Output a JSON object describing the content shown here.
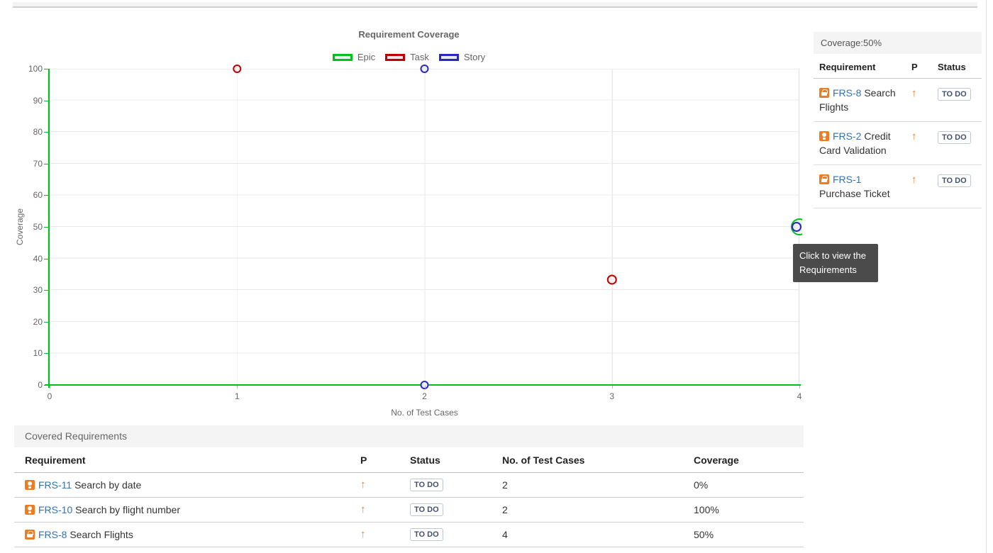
{
  "colors": {
    "epic_green": "#00c01e",
    "task_red": "#c00000",
    "story_blue": "#2929c0",
    "link_blue": "#3572b0",
    "issue_icon_orange": "#ef7b23",
    "priority_arrow_orange": "#ea7d24",
    "tooltip_bg": "#4b4b4b"
  },
  "chart": {
    "title": "Requirement Coverage",
    "legend": [
      {
        "label": "Epic",
        "border": "#00c01e",
        "fill": "#eaf7ea"
      },
      {
        "label": "Task",
        "border": "#c00000",
        "fill": "#f7eaea"
      },
      {
        "label": "Story",
        "border": "#2929c0",
        "fill": "#eaeaf7"
      }
    ],
    "xlabel": "No. of Test Cases",
    "ylabel": "Coverage",
    "x_ticks": [
      "0",
      "1",
      "2",
      "3",
      "4"
    ],
    "y_ticks": [
      "0",
      "10",
      "20",
      "30",
      "40",
      "50",
      "60",
      "70",
      "80",
      "90",
      "100"
    ],
    "chart_data": {
      "type": "scatter",
      "title": "Requirement Coverage",
      "xlabel": "No. of Test Cases",
      "ylabel": "Coverage",
      "xlim": [
        0,
        4
      ],
      "ylim": [
        0,
        100
      ],
      "grid": true,
      "legend_position": "top-center",
      "series": [
        {
          "name": "Epic",
          "color": "#00c01e",
          "fill": "#eaf7ea",
          "points": [
            {
              "x": 4,
              "y": 50,
              "r": 11
            }
          ]
        },
        {
          "name": "Task",
          "color": "#c00000",
          "fill": "#faeeee",
          "points": [
            {
              "x": 1,
              "y": 100,
              "r": 5
            },
            {
              "x": 3,
              "y": 33.3,
              "r": 6
            }
          ]
        },
        {
          "name": "Story",
          "color": "#2929c0",
          "fill": "#eeeefa",
          "points": [
            {
              "x": 2,
              "y": 100,
              "r": 5
            },
            {
              "x": 2,
              "y": 0,
              "r": 5
            },
            {
              "x": 4,
              "y": 50,
              "r": 6,
              "dx": -4
            }
          ]
        }
      ]
    }
  },
  "tooltip": {
    "text": "Click to view the Requirements"
  },
  "coverage_panel": {
    "title": "Coverage:50%",
    "columns": {
      "requirement": "Requirement",
      "p": "P",
      "status": "Status"
    },
    "rows": [
      {
        "icon": "lock",
        "key": "FRS-8",
        "summary": "Search Flights",
        "priority": "up",
        "status": "TO DO"
      },
      {
        "icon": "bulb",
        "key": "FRS-2",
        "summary": "Credit Card Validation",
        "priority": "up",
        "status": "TO DO"
      },
      {
        "icon": "lock",
        "key": "FRS-1",
        "summary": "Purchase Ticket",
        "priority": "up",
        "status": "TO DO"
      }
    ]
  },
  "covered_requirements": {
    "title": "Covered Requirements",
    "columns": {
      "requirement": "Requirement",
      "p": "P",
      "status": "Status",
      "test_cases": "No. of Test Cases",
      "coverage": "Coverage"
    },
    "rows": [
      {
        "icon": "bulb",
        "key": "FRS-11",
        "summary": "Search by date",
        "priority": "up",
        "status": "TO DO",
        "test_cases": "2",
        "coverage": "0%"
      },
      {
        "icon": "bulb",
        "key": "FRS-10",
        "summary": "Search by flight number",
        "priority": "up",
        "status": "TO DO",
        "test_cases": "2",
        "coverage": "100%"
      },
      {
        "icon": "lock",
        "key": "FRS-8",
        "summary": "Search Flights",
        "priority": "up",
        "status": "TO DO",
        "test_cases": "4",
        "coverage": "50%"
      }
    ]
  },
  "glyphs": {
    "priority_up_arrow": "↑"
  }
}
